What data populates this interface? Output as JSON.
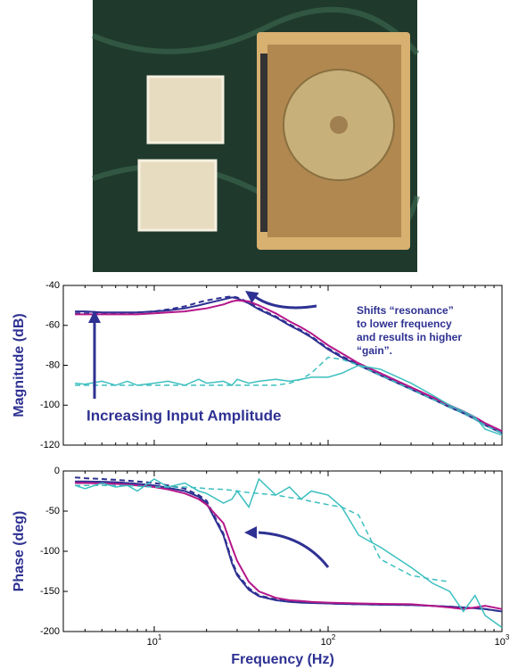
{
  "chart_data": [
    {
      "type": "line",
      "log_x": true,
      "xlim": [
        3,
        1000
      ],
      "ylim": [
        -120,
        -40
      ],
      "yticks": [
        -120,
        -100,
        -80,
        -60,
        -40
      ],
      "ylabel": "Magnitude (dB)",
      "annotations": [
        "Shifts “resonance”",
        "to lower frequency",
        "and results in higher",
        "“gain”.",
        "Increasing Input Amplitude"
      ],
      "x": [
        3.5,
        4,
        5,
        6,
        7,
        8,
        10,
        12,
        15,
        18,
        20,
        25,
        28,
        30,
        35,
        40,
        50,
        60,
        70,
        80,
        100,
        120,
        150,
        200,
        300,
        400,
        500,
        600,
        700,
        800,
        1000
      ],
      "series": [
        {
          "color": "#2e3192",
          "dash": false,
          "values": [
            -53,
            -53,
            -53.5,
            -53.5,
            -53.5,
            -53.5,
            -53,
            -52.5,
            -51.5,
            -50,
            -49,
            -47,
            -46,
            -46.5,
            -49,
            -52,
            -56,
            -60,
            -63,
            -66,
            -72,
            -76,
            -80,
            -85,
            -92,
            -97,
            -101,
            -104,
            -107,
            -110,
            -114
          ]
        },
        {
          "color": "#2e3192",
          "dash": true,
          "values": [
            -54,
            -54,
            -54,
            -54,
            -54,
            -53.5,
            -53,
            -52,
            -50.5,
            -48.5,
            -47.5,
            -46,
            -45.5,
            -46,
            -48.5,
            -51.5,
            -55.5,
            -59.5,
            -62.5,
            -65.5,
            -71.5,
            -75.5,
            -79.5,
            -84.5,
            -91.5,
            -96.5,
            -100.5,
            -103.5,
            -106.5,
            -109.5,
            -113.5
          ]
        },
        {
          "color": "#b5178a",
          "dash": false,
          "values": [
            -54.5,
            -54.5,
            -54.5,
            -54.5,
            -54.5,
            -54.5,
            -54,
            -53.5,
            -53,
            -52,
            -51.5,
            -49.5,
            -48,
            -47.5,
            -48,
            -50,
            -54,
            -58,
            -61,
            -64,
            -70,
            -74,
            -79,
            -84,
            -91,
            -96,
            -100,
            -103,
            -106,
            -109,
            -113
          ]
        },
        {
          "color": "#3cbfbf",
          "dash": false,
          "values": [
            -89,
            -89.5,
            -88,
            -90,
            -88,
            -90,
            -89,
            -88,
            -90,
            -87,
            -89,
            -88,
            -90,
            -87,
            -89,
            -88,
            -87,
            -88,
            -87,
            -86,
            -86,
            -84,
            -80,
            -82,
            -89,
            -95,
            -100,
            -103,
            -106,
            -112,
            -115
          ]
        },
        {
          "color": "#3cbfbf",
          "dash": true,
          "values": [
            -90,
            -90,
            -90,
            -90,
            -90,
            -90,
            -90,
            -90,
            -90,
            -90,
            -90,
            -90,
            -90,
            -90,
            -90,
            -90,
            -90,
            -89,
            -87,
            -84,
            -76,
            -77,
            -80,
            -85,
            -92,
            -97,
            -101,
            -104,
            -107,
            -110,
            -114
          ]
        }
      ]
    },
    {
      "type": "line",
      "log_x": true,
      "xlim": [
        3,
        1000
      ],
      "ylim": [
        -200,
        0
      ],
      "yticks": [
        -200,
        -150,
        -100,
        -50,
        0
      ],
      "xticks": [
        {
          "value": 10,
          "base": "10",
          "exponent": "1"
        },
        {
          "value": 100,
          "base": "10",
          "exponent": "2"
        },
        {
          "value": 1000,
          "base": "10",
          "exponent": "3"
        }
      ],
      "ylabel": "Phase (deg)",
      "xlabel": "Frequency (Hz)",
      "x": [
        3.5,
        4,
        5,
        6,
        7,
        8,
        10,
        12,
        15,
        18,
        20,
        25,
        28,
        30,
        35,
        40,
        50,
        60,
        70,
        80,
        100,
        120,
        150,
        200,
        300,
        400,
        500,
        600,
        700,
        800,
        1000
      ],
      "series": [
        {
          "color": "#2e3192",
          "dash": false,
          "values": [
            -13,
            -13,
            -13.5,
            -14,
            -15,
            -16,
            -18,
            -21,
            -25,
            -32,
            -40,
            -80,
            -115,
            -130,
            -148,
            -156,
            -161,
            -163,
            -164,
            -164.5,
            -165,
            -165.5,
            -166,
            -166.5,
            -167,
            -168,
            -169,
            -170,
            -171,
            -172,
            -175
          ]
        },
        {
          "color": "#2e3192",
          "dash": true,
          "values": [
            -8,
            -9,
            -10,
            -11,
            -12,
            -13,
            -15,
            -18,
            -22,
            -30,
            -37,
            -78,
            -112,
            -128,
            -146,
            -155,
            -160,
            -162,
            -163,
            -164,
            -165,
            -165.5,
            -166,
            -166.5,
            -167,
            -168,
            -169,
            -170,
            -171,
            -172,
            -175
          ]
        },
        {
          "color": "#b5178a",
          "dash": false,
          "values": [
            -15,
            -15,
            -15.5,
            -16,
            -17,
            -18,
            -20,
            -23,
            -28,
            -35,
            -42,
            -65,
            -95,
            -112,
            -138,
            -150,
            -158,
            -161,
            -162,
            -163,
            -164,
            -164.5,
            -165,
            -165.5,
            -166,
            -168,
            -170,
            -172,
            -170,
            -168,
            -172
          ]
        },
        {
          "color": "#3cbfbf",
          "dash": false,
          "values": [
            -18,
            -22,
            -15,
            -20,
            -18,
            -25,
            -10,
            -20,
            -15,
            -25,
            -28,
            -40,
            -35,
            -25,
            -45,
            -10,
            -30,
            -20,
            -35,
            -25,
            -30,
            -45,
            -80,
            -95,
            -120,
            -140,
            -150,
            -175,
            -155,
            -180,
            -195
          ]
        },
        {
          "color": "#3cbfbf",
          "dash": true,
          "values": [
            -18,
            -18,
            -18,
            -18,
            -18,
            -19,
            -20,
            -20,
            -20,
            -21,
            -22,
            -23,
            -24,
            -25,
            -27,
            -28,
            -30,
            -33,
            -35,
            -38,
            -42,
            -45,
            -55,
            -110,
            -130,
            -135,
            -138,
            null,
            null,
            null,
            null
          ]
        }
      ]
    }
  ]
}
